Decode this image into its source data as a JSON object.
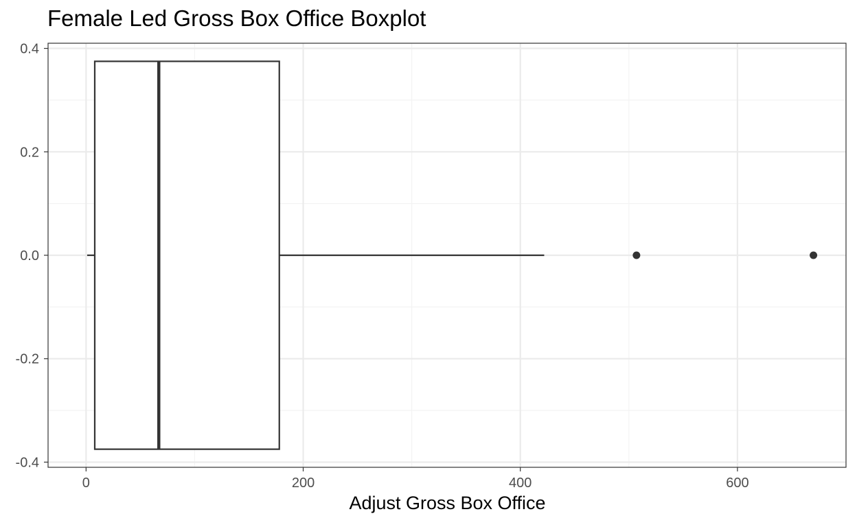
{
  "chart_data": {
    "type": "boxplot",
    "title": "Female Led Gross Box Office Boxplot",
    "xlabel": "Adjust Gross Box Office",
    "ylabel": "",
    "xlim": [
      -35,
      700
    ],
    "ylim": [
      -0.41,
      0.41
    ],
    "x_ticks": [
      0,
      200,
      400,
      600
    ],
    "x_tick_labels": [
      "0",
      "200",
      "400",
      "600"
    ],
    "y_ticks": [
      0.4,
      0.2,
      0.0,
      -0.2,
      -0.4
    ],
    "y_tick_labels": [
      "0.4",
      "0.2",
      "0.0",
      "-0.2",
      "-0.4"
    ],
    "grid": true,
    "box": {
      "y_center": 0.0,
      "y_half_width": 0.375,
      "whisker_low": 1,
      "q1": 8,
      "median": 67,
      "q3": 178,
      "whisker_high": 422
    },
    "outliers": [
      507,
      670
    ],
    "colors": {
      "stroke": "#333333",
      "grid_major": "#ebebeb",
      "grid_minor": "#f3f3f3",
      "panel_border": "#333333",
      "tick_text": "#4d4d4d"
    }
  }
}
